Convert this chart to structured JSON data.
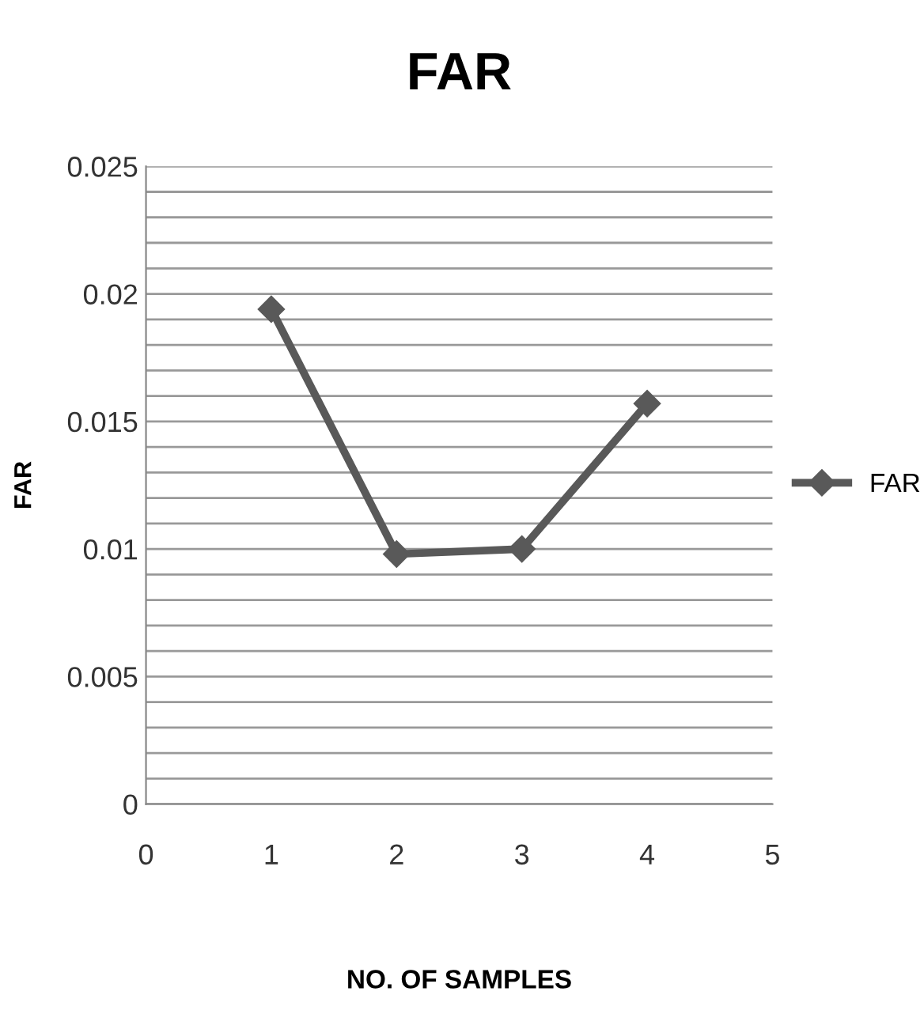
{
  "chart_data": {
    "type": "line",
    "title": "FAR",
    "xlabel": "NO. OF SAMPLES",
    "ylabel": "FAR",
    "x": [
      1,
      2,
      3,
      4
    ],
    "series": [
      {
        "name": "FAR",
        "color": "#595959",
        "values": [
          0.0194,
          0.0098,
          0.01,
          0.0157
        ]
      }
    ],
    "xlim": [
      0,
      5
    ],
    "xticks": [
      0,
      1,
      2,
      3,
      4,
      5
    ],
    "ylim": [
      0,
      0.025
    ],
    "yticks": [
      0,
      {
        "value": 0.001,
        "label": null
      },
      {
        "value": 0.002,
        "label": null
      },
      {
        "value": 0.003,
        "label": null
      },
      {
        "value": 0.004,
        "label": null
      },
      0.005,
      {
        "value": 0.006,
        "label": null
      },
      {
        "value": 0.007,
        "label": null
      },
      {
        "value": 0.008,
        "label": null
      },
      {
        "value": 0.009,
        "label": null
      },
      0.01,
      {
        "value": 0.011,
        "label": null
      },
      {
        "value": 0.012,
        "label": null
      },
      {
        "value": 0.013,
        "label": null
      },
      {
        "value": 0.014,
        "label": null
      },
      0.015,
      {
        "value": 0.016,
        "label": null
      },
      {
        "value": 0.017,
        "label": null
      },
      {
        "value": 0.018,
        "label": null
      },
      {
        "value": 0.019,
        "label": null
      },
      0.02,
      {
        "value": 0.021,
        "label": null
      },
      {
        "value": 0.022,
        "label": null
      },
      {
        "value": 0.023,
        "label": null
      },
      {
        "value": 0.024,
        "label": null
      },
      0.025
    ],
    "grid": "y",
    "legend": "right",
    "marker": "diamond",
    "line_style": "solid"
  }
}
